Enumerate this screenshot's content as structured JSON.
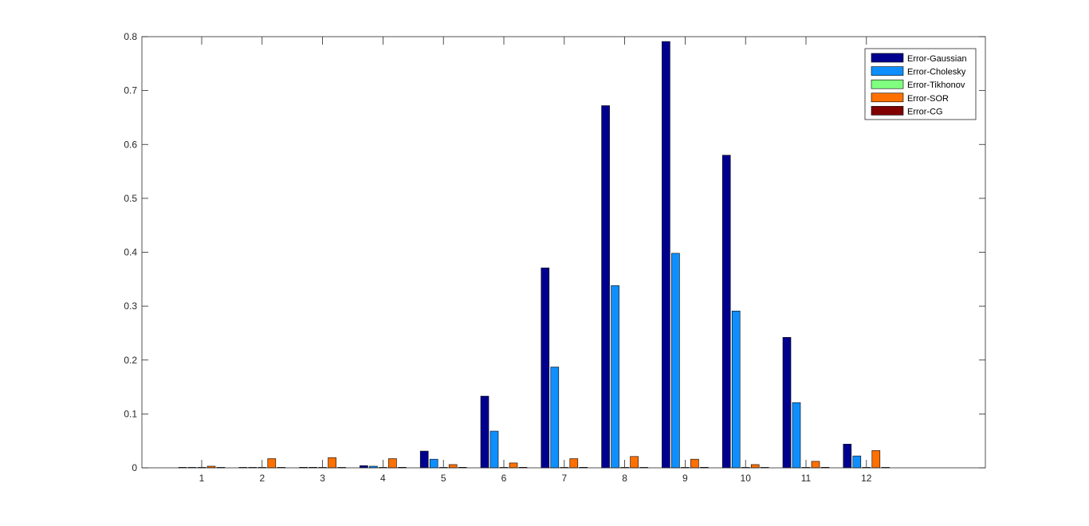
{
  "chart_data": {
    "type": "bar",
    "categories": [
      "1",
      "2",
      "3",
      "4",
      "5",
      "6",
      "7",
      "8",
      "9",
      "10",
      "11",
      "12"
    ],
    "ylim": [
      0,
      0.8
    ],
    "yticks": [
      "0",
      "0.1",
      "0.2",
      "0.3",
      "0.4",
      "0.5",
      "0.6",
      "0.7",
      "0.8"
    ],
    "xlabel": "",
    "ylabel": "",
    "title": "",
    "grid": false,
    "legend_position": "top-right",
    "series": [
      {
        "name": "Error-Gaussian",
        "color": "#00008f",
        "values": [
          0.0,
          0.0,
          0.001,
          0.004,
          0.031,
          0.133,
          0.371,
          0.672,
          0.791,
          0.58,
          0.242,
          0.044
        ]
      },
      {
        "name": "Error-Cholesky",
        "color": "#0f8fff",
        "values": [
          0.0,
          0.0,
          0.001,
          0.003,
          0.016,
          0.068,
          0.187,
          0.338,
          0.398,
          0.291,
          0.121,
          0.022
        ]
      },
      {
        "name": "Error-Tikhonov",
        "color": "#80ff80",
        "values": [
          0.0,
          0.0,
          0.0,
          0.0,
          0.0,
          0.0,
          0.0,
          0.0,
          0.0,
          0.0,
          0.0,
          0.0
        ]
      },
      {
        "name": "Error-SOR",
        "color": "#ff7000",
        "values": [
          0.003,
          0.017,
          0.019,
          0.017,
          0.006,
          0.009,
          0.017,
          0.021,
          0.016,
          0.006,
          0.012,
          0.032
        ]
      },
      {
        "name": "Error-CG",
        "color": "#800000",
        "values": [
          0.0,
          0.0,
          0.0,
          0.001,
          0.001,
          0.001,
          0.001,
          0.0,
          0.001,
          0.0,
          0.001,
          0.0
        ]
      }
    ]
  }
}
